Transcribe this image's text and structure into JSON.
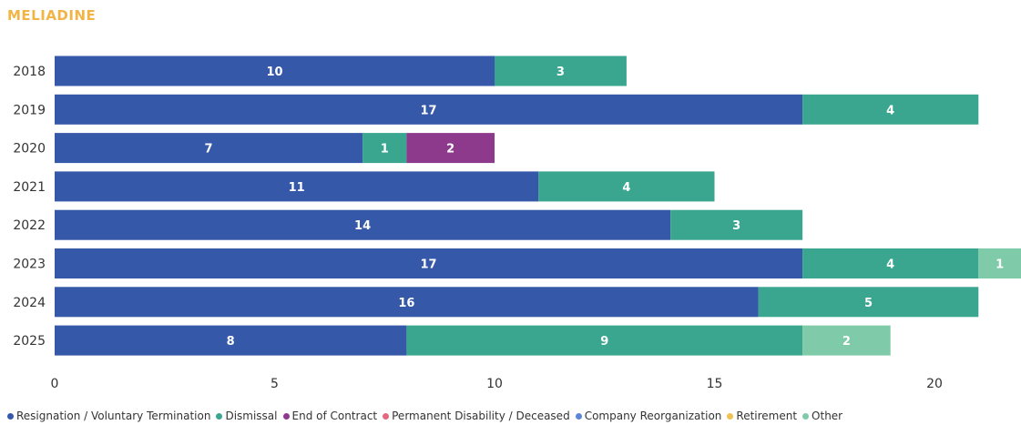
{
  "title": "MELIADINE",
  "chart_data": {
    "type": "bar",
    "orientation": "horizontal",
    "stacked": true,
    "title": "MELIADINE",
    "categories": [
      "2018",
      "2019",
      "2020",
      "2021",
      "2022",
      "2023",
      "2024",
      "2025"
    ],
    "xlim": [
      0,
      21
    ],
    "xticks": [
      0,
      5,
      10,
      15,
      20
    ],
    "grid": false,
    "legend_position": "bottom",
    "series": [
      {
        "name": "Resignation / Voluntary Termination",
        "color": "#3558a8",
        "values": [
          10,
          17,
          7,
          11,
          14,
          17,
          16,
          8
        ]
      },
      {
        "name": "Dismissal",
        "color": "#3aa690",
        "values": [
          3,
          4,
          1,
          4,
          3,
          4,
          5,
          9
        ]
      },
      {
        "name": "End of Contract",
        "color": "#8e3a8c",
        "values": [
          0,
          0,
          2,
          0,
          0,
          0,
          0,
          0
        ]
      },
      {
        "name": "Permanent Disability / Deceased",
        "color": "#e3697e",
        "values": [
          0,
          0,
          0,
          0,
          0,
          0,
          0,
          0
        ]
      },
      {
        "name": "Company Reorganization",
        "color": "#5b86d6",
        "values": [
          0,
          0,
          0,
          0,
          0,
          0,
          0,
          0
        ]
      },
      {
        "name": "Retirement",
        "color": "#f2c14e",
        "values": [
          0,
          0,
          0,
          0,
          0,
          0,
          0,
          0
        ]
      },
      {
        "name": "Other",
        "color": "#7fcaa8",
        "values": [
          0,
          0,
          0,
          0,
          0,
          1,
          0,
          2
        ]
      }
    ]
  }
}
